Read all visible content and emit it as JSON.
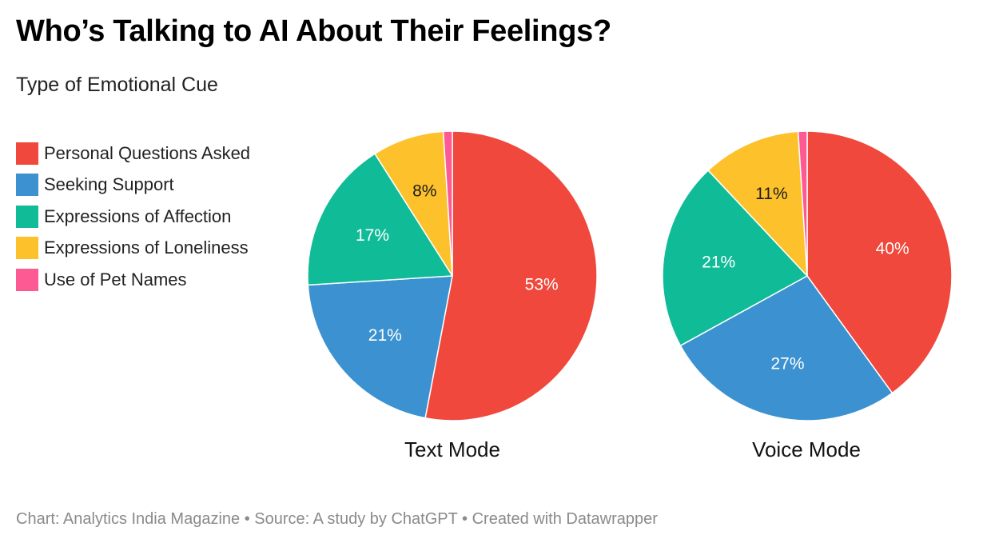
{
  "header": {
    "title": "Who’s Talking to AI About Their Feelings?",
    "subtitle": "Type of Emotional Cue"
  },
  "legend": {
    "items": [
      {
        "label": "Personal Questions Asked",
        "color": "#f0483c"
      },
      {
        "label": "Seeking Support",
        "color": "#3c92d0"
      },
      {
        "label": "Expressions of Affection",
        "color": "#10bb98"
      },
      {
        "label": "Expressions of Loneliness",
        "color": "#fdc12c"
      },
      {
        "label": "Use of Pet Names",
        "color": "#fd5a94"
      }
    ]
  },
  "footer": {
    "text": "Chart: Analytics India Magazine • Source: A study by ChatGPT • Created with Datawrapper"
  },
  "chart_data": [
    {
      "type": "pie",
      "title": "Text Mode",
      "categories": [
        "Personal Questions Asked",
        "Seeking Support",
        "Expressions of Affection",
        "Expressions of Loneliness",
        "Use of Pet Names"
      ],
      "values": [
        53,
        21,
        17,
        8,
        1
      ],
      "labels": [
        "53%",
        "21%",
        "17%",
        "8%",
        ""
      ],
      "colors": [
        "#f0483c",
        "#3c92d0",
        "#10bb98",
        "#fdc12c",
        "#fd5a94"
      ],
      "label_colors": [
        "#ffffff",
        "#ffffff",
        "#ffffff",
        "#1d1d1d",
        "#ffffff"
      ],
      "legend": "left"
    },
    {
      "type": "pie",
      "title": "Voice Mode",
      "categories": [
        "Personal Questions Asked",
        "Seeking Support",
        "Expressions of Affection",
        "Expressions of Loneliness",
        "Use of Pet Names"
      ],
      "values": [
        40,
        27,
        21,
        11,
        1
      ],
      "labels": [
        "40%",
        "27%",
        "21%",
        "11%",
        ""
      ],
      "colors": [
        "#f0483c",
        "#3c92d0",
        "#10bb98",
        "#fdc12c",
        "#fd5a94"
      ],
      "label_colors": [
        "#ffffff",
        "#ffffff",
        "#ffffff",
        "#1d1d1d",
        "#ffffff"
      ],
      "legend": "left"
    }
  ]
}
